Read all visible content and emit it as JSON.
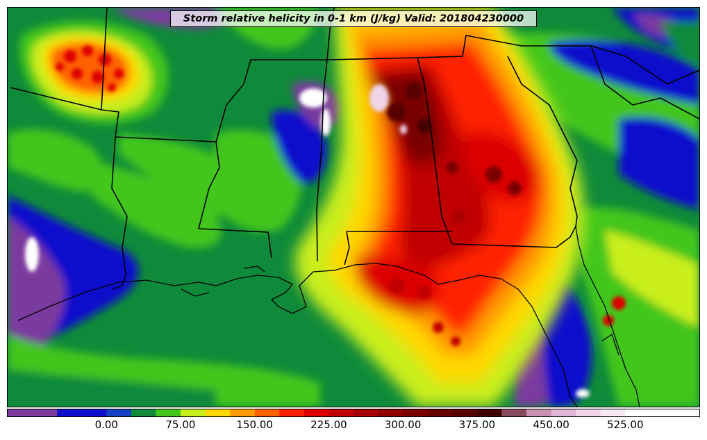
{
  "title": "Storm relative helicity in 0-1 km (J/kg) Valid: 201804230000",
  "colorbar": {
    "tick_labels": [
      "0.00",
      "75.00",
      "150.00",
      "225.00",
      "300.00",
      "375.00",
      "450.00",
      "525.00"
    ],
    "tick_values": [
      0,
      75,
      150,
      225,
      300,
      375,
      450,
      525
    ],
    "range": [
      -100,
      600
    ],
    "levels": [
      -100,
      -75,
      -50,
      -25,
      0,
      25,
      50,
      75,
      100,
      125,
      150,
      175,
      200,
      225,
      250,
      275,
      300,
      325,
      350,
      375,
      400,
      425,
      450,
      475,
      500,
      525,
      550,
      575,
      600
    ],
    "colors": [
      "#7a3a9e",
      "#7a3a9e",
      "#1010cc",
      "#1010cc",
      "#1540c4",
      "#0f8a3a",
      "#43c61a",
      "#c9ee1e",
      "#ffd800",
      "#ff9a00",
      "#ff6000",
      "#ff2000",
      "#dd0000",
      "#c00000",
      "#a80000",
      "#900000",
      "#7a0000",
      "#680000",
      "#560000",
      "#400000",
      "#8a4a5e",
      "#c890b0",
      "#e0b8d6",
      "#f0d4ea",
      "#f8e8f4",
      "#ffffff",
      "#ffffff",
      "#ffffff"
    ]
  }
}
